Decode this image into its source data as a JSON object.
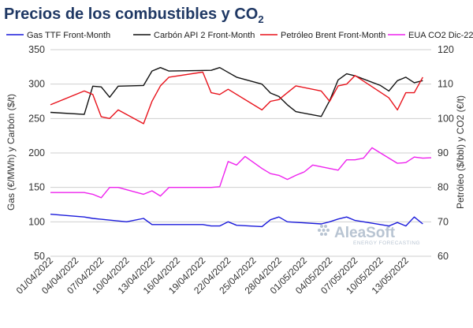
{
  "chart_data": {
    "type": "line",
    "title_main": "Precios de los combustibles y CO",
    "title_sub": "2",
    "left_axis": {
      "label": "Gas (€/MWh) y Carbón ($/t)",
      "min": 50,
      "max": 350,
      "ticks": [
        "50",
        "100",
        "150",
        "200",
        "250",
        "300",
        "350"
      ]
    },
    "right_axis": {
      "label": "Petróleo ($/bbl) y CO2 (€/t)",
      "min": 60,
      "max": 120,
      "ticks": [
        "60",
        "70",
        "80",
        "90",
        "100",
        "110",
        "120"
      ]
    },
    "x_ticks": [
      "01/04/2022",
      "04/04/2022",
      "07/04/2022",
      "10/04/2022",
      "13/04/2022",
      "16/04/2022",
      "19/04/2022",
      "22/04/2022",
      "25/04/2022",
      "28/04/2022",
      "01/05/2022",
      "04/05/2022",
      "07/05/2022",
      "10/05/2022",
      "13/05/2022"
    ],
    "grid": "horizontal",
    "legend": "top",
    "series": [
      {
        "name": "Gas TTF Front-Month",
        "axis": "left",
        "color": "#1a1adb",
        "points": [
          [
            0,
            111
          ],
          [
            4,
            107
          ],
          [
            5,
            105
          ],
          [
            9,
            100
          ],
          [
            11,
            105
          ],
          [
            12,
            96
          ],
          [
            18,
            96
          ],
          [
            19,
            94
          ],
          [
            20,
            94
          ],
          [
            21,
            100
          ],
          [
            22,
            95
          ],
          [
            25,
            93
          ],
          [
            26,
            103
          ],
          [
            27,
            107
          ],
          [
            28,
            100
          ],
          [
            32,
            97
          ],
          [
            33,
            100
          ],
          [
            34,
            104
          ],
          [
            35,
            107
          ],
          [
            36,
            102
          ],
          [
            38,
            98
          ],
          [
            40,
            94
          ],
          [
            41,
            99
          ],
          [
            42,
            94
          ],
          [
            43,
            107
          ],
          [
            44,
            97
          ]
        ]
      },
      {
        "name": "Carbón API 2 Front-Month",
        "axis": "left",
        "color": "#111111",
        "points": [
          [
            0,
            259
          ],
          [
            4,
            256
          ],
          [
            5,
            297
          ],
          [
            6,
            296
          ],
          [
            7,
            281
          ],
          [
            8,
            297
          ],
          [
            11,
            298
          ],
          [
            12,
            319
          ],
          [
            13,
            324
          ],
          [
            14,
            319
          ],
          [
            19,
            320
          ],
          [
            20,
            324
          ],
          [
            21,
            317
          ],
          [
            22,
            310
          ],
          [
            25,
            300
          ],
          [
            26,
            287
          ],
          [
            27,
            282
          ],
          [
            28,
            270
          ],
          [
            29,
            260
          ],
          [
            32,
            253
          ],
          [
            33,
            276
          ],
          [
            34,
            306
          ],
          [
            35,
            315
          ],
          [
            36,
            312
          ],
          [
            39,
            298
          ],
          [
            40,
            290
          ],
          [
            41,
            305
          ],
          [
            42,
            310
          ],
          [
            43,
            302
          ],
          [
            44,
            305
          ]
        ]
      },
      {
        "name": "Petróleo Brent Front-Month",
        "axis": "right",
        "color": "#e8121b",
        "points": [
          [
            0,
            104
          ],
          [
            4,
            108
          ],
          [
            5,
            107
          ],
          [
            6,
            100.5
          ],
          [
            7,
            100
          ],
          [
            8,
            102.5
          ],
          [
            11,
            98.5
          ],
          [
            12,
            105
          ],
          [
            13,
            109.5
          ],
          [
            14,
            112
          ],
          [
            18,
            113.5
          ],
          [
            19,
            107.5
          ],
          [
            20,
            107
          ],
          [
            21,
            108.5
          ],
          [
            25,
            102.5
          ],
          [
            26,
            105
          ],
          [
            27,
            105.5
          ],
          [
            28,
            107.5
          ],
          [
            29,
            109.5
          ],
          [
            32,
            108
          ],
          [
            33,
            105
          ],
          [
            34,
            109.5
          ],
          [
            35,
            110
          ],
          [
            36,
            112.5
          ],
          [
            40,
            106
          ],
          [
            41,
            102.5
          ],
          [
            42,
            107.5
          ],
          [
            43,
            107.5
          ],
          [
            44,
            112
          ]
        ]
      },
      {
        "name": "EUA CO2 Dic-22",
        "axis": "right",
        "color": "#ee22ee",
        "points": [
          [
            0,
            78.5
          ],
          [
            4,
            78.5
          ],
          [
            5,
            78
          ],
          [
            6,
            77
          ],
          [
            7,
            80
          ],
          [
            8,
            80
          ],
          [
            11,
            78
          ],
          [
            12,
            79
          ],
          [
            13,
            77.5
          ],
          [
            14,
            80
          ],
          [
            19,
            80
          ],
          [
            20,
            80.2
          ],
          [
            21,
            87.5
          ],
          [
            22,
            86.5
          ],
          [
            23,
            89
          ],
          [
            25,
            85.5
          ],
          [
            26,
            84
          ],
          [
            27,
            83.5
          ],
          [
            28,
            82.3
          ],
          [
            29,
            83.5
          ],
          [
            30,
            84.5
          ],
          [
            31,
            86.5
          ],
          [
            33,
            85.5
          ],
          [
            34,
            85
          ],
          [
            35,
            88
          ],
          [
            36,
            88
          ],
          [
            37,
            88.5
          ],
          [
            38,
            91.5
          ],
          [
            39,
            90
          ],
          [
            41,
            87
          ],
          [
            42,
            87.2
          ],
          [
            43,
            88.8
          ],
          [
            44,
            88.5
          ],
          [
            45,
            88.6
          ]
        ]
      }
    ]
  },
  "watermark": {
    "brand": "AleaSoft",
    "tagline": "ENERGY FORECASTING"
  }
}
